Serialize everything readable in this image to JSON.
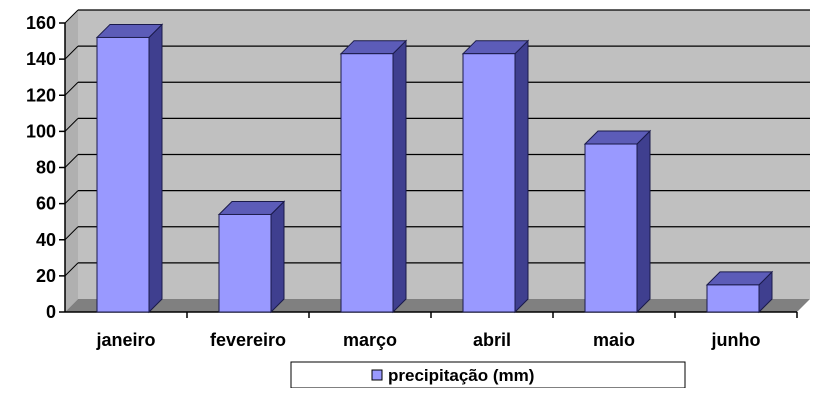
{
  "chart_data": {
    "type": "bar",
    "categories": [
      "janeiro",
      "fevereiro",
      "março",
      "abril",
      "maio",
      "junho"
    ],
    "series": [
      {
        "name": "precipitação (mm)",
        "values": [
          152,
          54,
          143,
          143,
          93,
          15
        ]
      }
    ],
    "ylim": [
      0,
      160
    ],
    "yticks": [
      0,
      20,
      40,
      60,
      80,
      100,
      120,
      140,
      160
    ],
    "grid": true,
    "legend": "bottom",
    "colors": {
      "bar_front": "#9999ff",
      "bar_side": "#3f3f8f",
      "bar_top": "#5c5cb8",
      "bar_edge": "#1a1a4a",
      "wall": "#c0c0c0",
      "floor": "#808080",
      "gridline": "#000000"
    }
  }
}
